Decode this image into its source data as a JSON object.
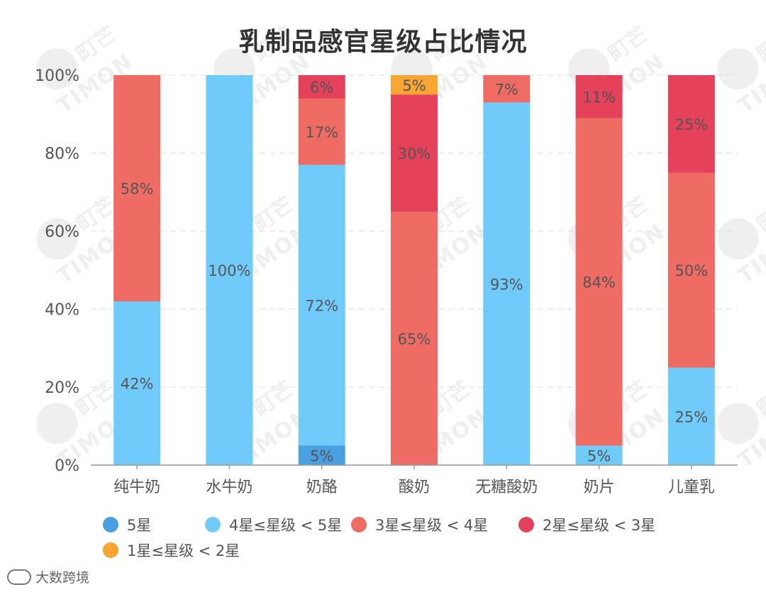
{
  "chart_data": {
    "type": "bar",
    "stacked": true,
    "normalized": true,
    "title": "乳制品感官星级占比情况",
    "xlabel": "",
    "ylabel": "",
    "ylim": [
      0,
      100
    ],
    "y_ticks": [
      "0%",
      "20%",
      "40%",
      "60%",
      "80%",
      "100%"
    ],
    "y_tick_values": [
      0,
      20,
      40,
      60,
      80,
      100
    ],
    "grid": true,
    "legend_position": "bottom",
    "categories": [
      "纯牛奶",
      "水牛奶",
      "奶酪",
      "酸奶",
      "无糖酸奶",
      "奶片",
      "儿童乳"
    ],
    "series": [
      {
        "name": "5星",
        "color": "#4A9FE0",
        "values": [
          0,
          0,
          5,
          0,
          0,
          0,
          0
        ],
        "labels": [
          "",
          "",
          "5%",
          "",
          "",
          "",
          ""
        ]
      },
      {
        "name": "4星≤星级 < 5星",
        "color": "#70CBFB",
        "values": [
          42,
          100,
          72,
          0,
          93,
          5,
          25
        ],
        "labels": [
          "42%",
          "100%",
          "72%",
          "",
          "93%",
          "5%",
          "25%"
        ]
      },
      {
        "name": "3星≤星级 < 4星",
        "color": "#EE6C63",
        "values": [
          58,
          0,
          17,
          65,
          7,
          84,
          50
        ],
        "labels": [
          "58%",
          "",
          "17%",
          "65%",
          "7%",
          "84%",
          "50%"
        ]
      },
      {
        "name": "2星≤星级 < 3星",
        "color": "#E5415A",
        "values": [
          0,
          0,
          6,
          30,
          0,
          11,
          25
        ],
        "labels": [
          "",
          "",
          "6%",
          "30%",
          "",
          "11%",
          "25%"
        ]
      },
      {
        "name": "1星≤星级 < 2星",
        "color": "#F9A534",
        "values": [
          0,
          0,
          0,
          5,
          0,
          0,
          0
        ],
        "labels": [
          "",
          "",
          "",
          "5%",
          "",
          "",
          ""
        ]
      }
    ]
  },
  "watermark": {
    "cn": "町芒",
    "en": "TIMON"
  },
  "source": {
    "text": "大数跨境"
  }
}
